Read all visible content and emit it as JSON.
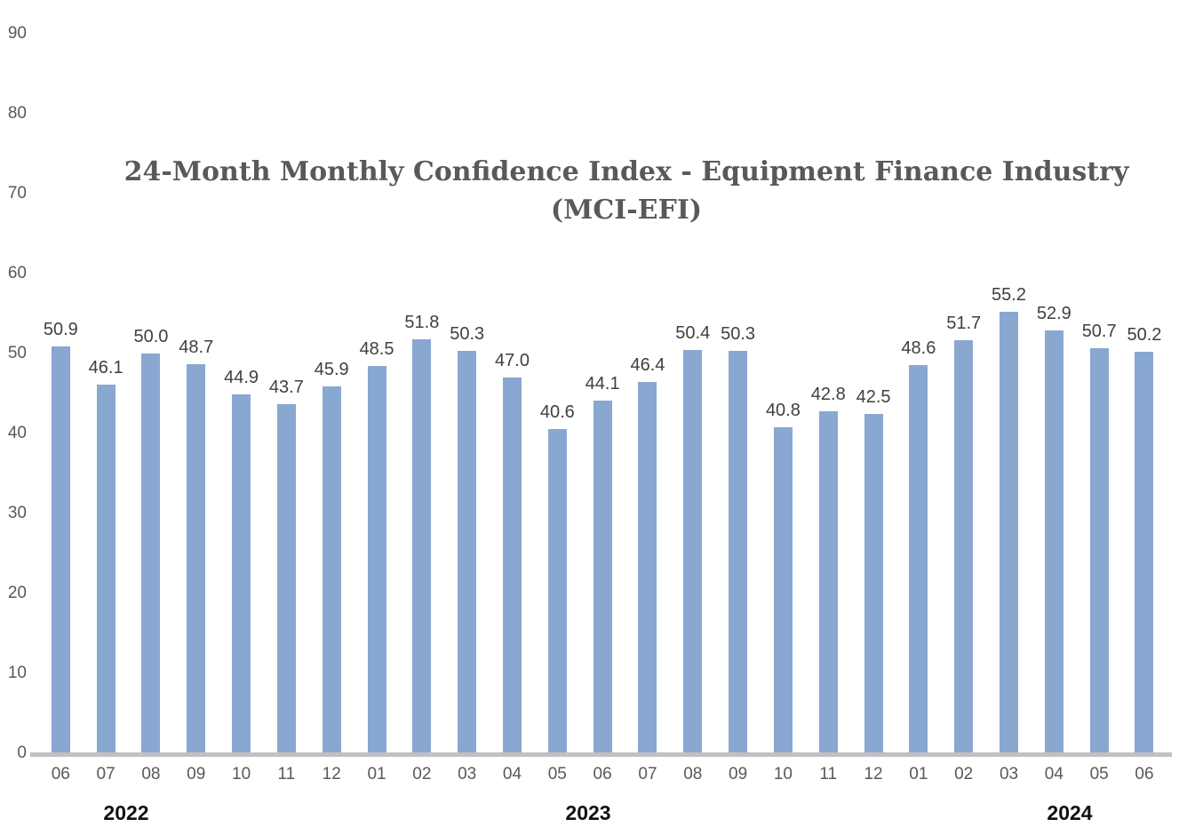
{
  "chart_data": {
    "type": "bar",
    "title": "24-Month Monthly Confidence Index - Equipment Finance Industry (MCI-EFI)",
    "title_lines": [
      "24-Month Monthly Confidence Index - Equipment Finance Industry",
      "(MCI-EFI)"
    ],
    "categories": [
      "06",
      "07",
      "08",
      "09",
      "10",
      "11",
      "12",
      "01",
      "02",
      "03",
      "04",
      "05",
      "06",
      "07",
      "08",
      "09",
      "10",
      "11",
      "12",
      "01",
      "02",
      "03",
      "04",
      "05",
      "06"
    ],
    "values": [
      50.9,
      46.1,
      50.0,
      48.7,
      44.9,
      43.7,
      45.9,
      48.5,
      51.8,
      50.3,
      47.0,
      40.6,
      44.1,
      46.4,
      50.4,
      50.3,
      40.8,
      42.8,
      42.5,
      48.6,
      51.7,
      55.2,
      52.9,
      50.7,
      50.2
    ],
    "value_labels": [
      "50.9",
      "46.1",
      "50.0",
      "48.7",
      "44.9",
      "43.7",
      "45.9",
      "48.5",
      "51.8",
      "50.3",
      "47.0",
      "40.6",
      "44.1",
      "46.4",
      "50.4",
      "50.3",
      "40.8",
      "42.8",
      "42.5",
      "48.6",
      "51.7",
      "55.2",
      "52.9",
      "50.7",
      "50.2"
    ],
    "year_labels": [
      "2022",
      "2023",
      "2024"
    ],
    "year_group_sizes": [
      7,
      12,
      6
    ],
    "yticks": [
      0,
      10,
      20,
      30,
      40,
      50,
      60,
      70,
      80,
      90
    ],
    "ylim": [
      0,
      90
    ],
    "xlabel": "",
    "ylabel": "",
    "grid": false,
    "legend": false,
    "data_labels_shown": true,
    "colors": {
      "bar": "#88A7D1",
      "axis_label": "#595959",
      "value_label": "#404040",
      "title": "#595959",
      "year_label": "#111111",
      "baseline": "#C1C1C1",
      "background": "#FFFFFF"
    }
  }
}
